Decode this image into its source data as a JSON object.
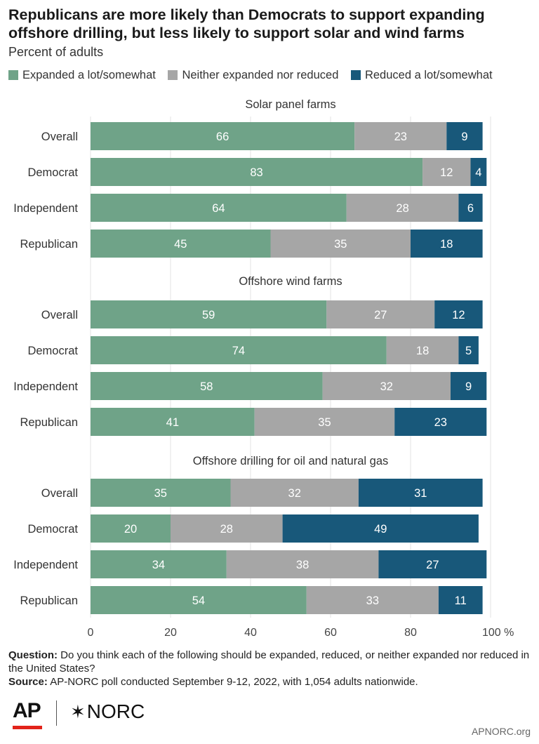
{
  "header": {
    "title": "Republicans are more likely than Democrats to support expanding offshore drilling, but less likely to support solar and wind farms",
    "subtitle": "Percent of adults"
  },
  "legend": [
    {
      "label": "Expanded a lot/somewhat",
      "color": "#6fa388"
    },
    {
      "label": "Neither expanded nor reduced",
      "color": "#a6a6a6"
    },
    {
      "label": "Reduced a lot/somewhat",
      "color": "#18587a"
    }
  ],
  "chart_data": {
    "type": "bar",
    "orientation": "horizontal",
    "stacked": true,
    "xlim": [
      0,
      100
    ],
    "x_ticks": [
      "0",
      "20",
      "40",
      "60",
      "80",
      "100 %"
    ],
    "colors": [
      "#6fa388",
      "#a6a6a6",
      "#18587a"
    ],
    "series_names": [
      "Expanded a lot/somewhat",
      "Neither expanded nor reduced",
      "Reduced a lot/somewhat"
    ],
    "groups": [
      {
        "title": "Solar panel farms",
        "rows": [
          {
            "label": "Overall",
            "values": [
              66,
              23,
              9
            ]
          },
          {
            "label": "Democrat",
            "values": [
              83,
              12,
              4
            ]
          },
          {
            "label": "Independent",
            "values": [
              64,
              28,
              6
            ]
          },
          {
            "label": "Republican",
            "values": [
              45,
              35,
              18
            ]
          }
        ]
      },
      {
        "title": "Offshore wind farms",
        "rows": [
          {
            "label": "Overall",
            "values": [
              59,
              27,
              12
            ]
          },
          {
            "label": "Democrat",
            "values": [
              74,
              18,
              5
            ]
          },
          {
            "label": "Independent",
            "values": [
              58,
              32,
              9
            ]
          },
          {
            "label": "Republican",
            "values": [
              41,
              35,
              23
            ]
          }
        ]
      },
      {
        "title": "Offshore drilling for oil and natural gas",
        "rows": [
          {
            "label": "Overall",
            "values": [
              35,
              32,
              31
            ]
          },
          {
            "label": "Democrat",
            "values": [
              20,
              28,
              49
            ]
          },
          {
            "label": "Independent",
            "values": [
              34,
              38,
              27
            ]
          },
          {
            "label": "Republican",
            "values": [
              54,
              33,
              11
            ]
          }
        ]
      }
    ]
  },
  "footer": {
    "question_label": "Question:",
    "question_text": "Do you think each of the following should be expanded, reduced, or neither expanded nor reduced in the United States?",
    "source_label": "Source:",
    "source_text": "AP-NORC poll conducted September 9-12, 2022, with 1,054 adults nationwide."
  },
  "logos": {
    "ap": "AP",
    "norc_star": "✶",
    "norc": "NORC",
    "site": "APNORC.org"
  }
}
